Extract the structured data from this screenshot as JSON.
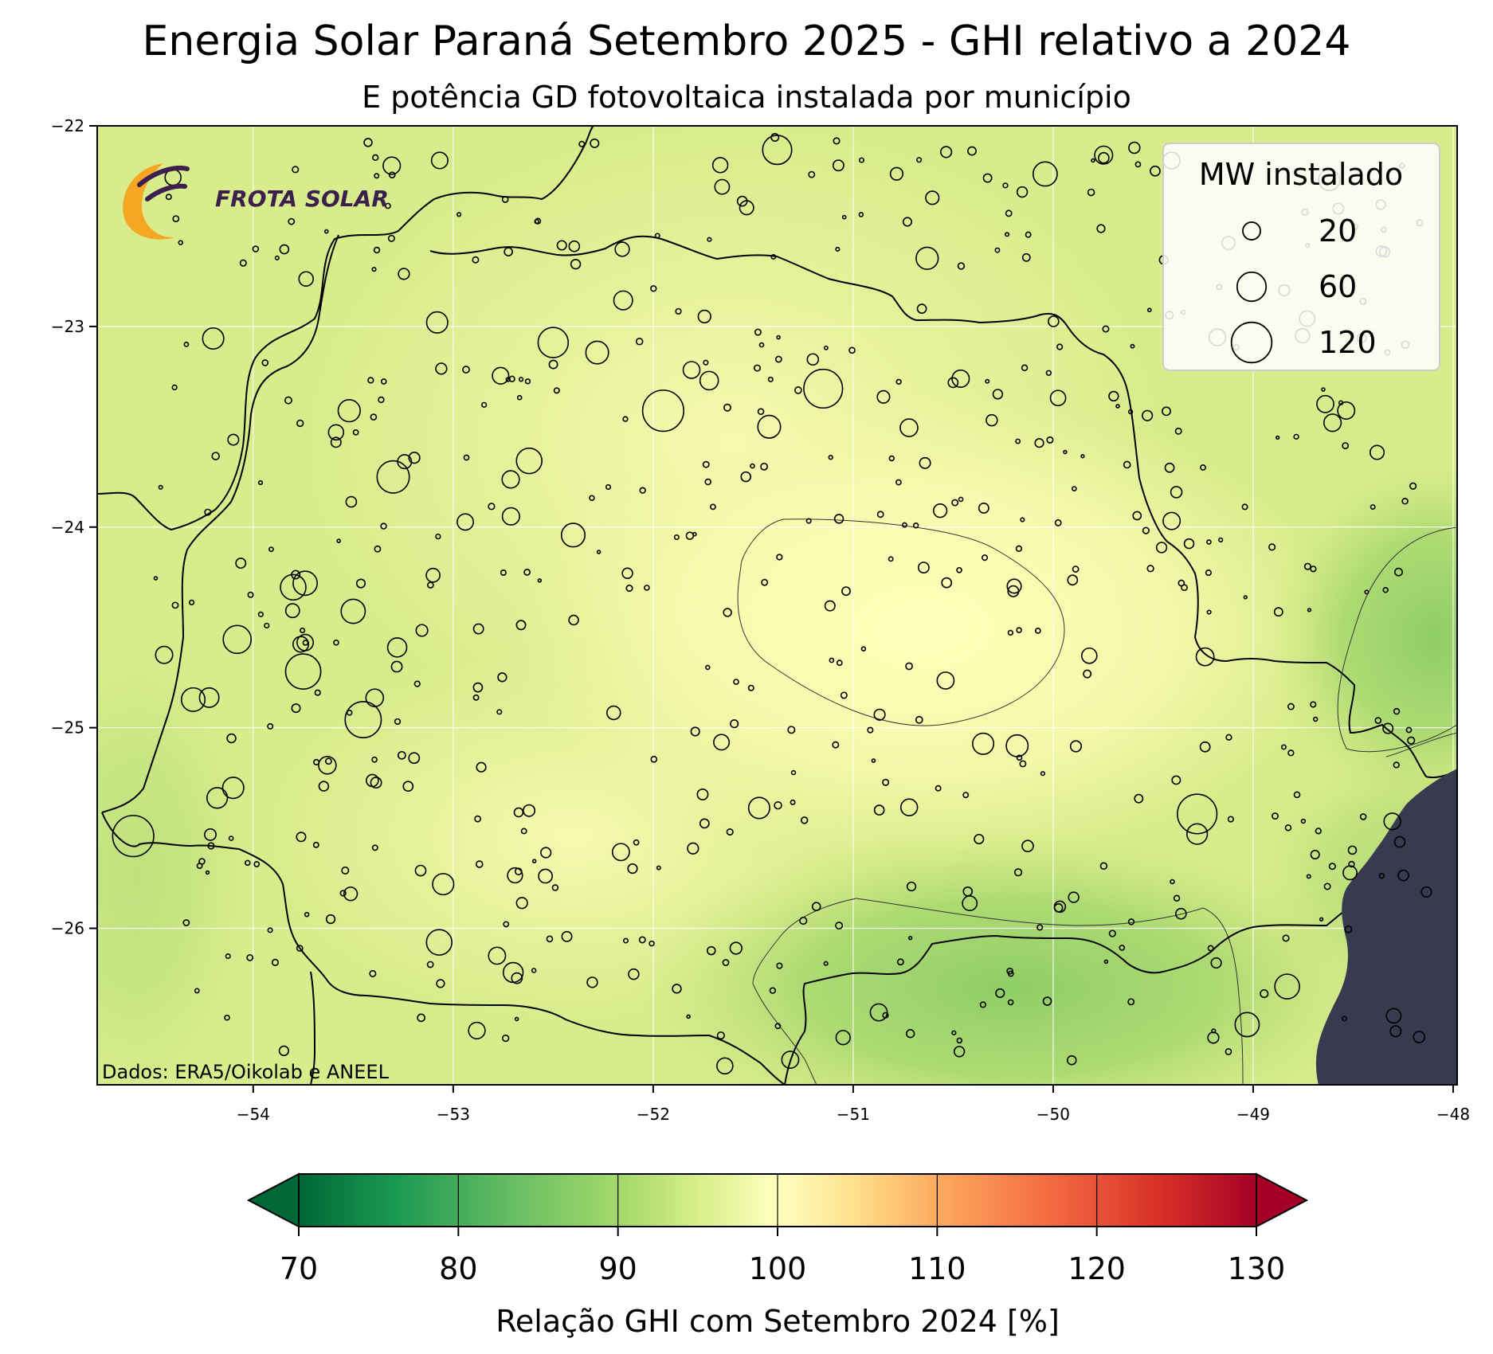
{
  "title": "Energia Solar Paraná Setembro 2025 - GHI relativo a 2024",
  "subtitle": "E potência GD fotovoltaica instalada por município",
  "credit": "Dados: ERA5/Oikolab e ANEEL",
  "logo_text": "FROTA SOLAR",
  "legend": {
    "title": "MW instalado",
    "entries": [
      {
        "label": "20",
        "mw": 20
      },
      {
        "label": "60",
        "mw": 60
      },
      {
        "label": "120",
        "mw": 120
      }
    ]
  },
  "colorbar": {
    "label": "Relação GHI com Setembro 2024 [%]",
    "ticks": [
      "70",
      "80",
      "90",
      "100",
      "110",
      "120",
      "130"
    ],
    "range": [
      70,
      130
    ],
    "extend": "both",
    "colormap": "RdYlGn_r"
  },
  "colors": {
    "ocean": "#383b4f",
    "ghi_background": "#d8ec8c",
    "ghi_high": "#ffffbe",
    "ghi_low": "#93cf68",
    "border_line": "#000000"
  },
  "chart_data": {
    "type": "map",
    "x_ticks": [
      "−54",
      "−53",
      "−52",
      "−51",
      "−50",
      "−49",
      "−48"
    ],
    "y_ticks": [
      "−22",
      "−23",
      "−24",
      "−25",
      "−26"
    ],
    "xlim": [
      -54.78,
      -47.98
    ],
    "ylim": [
      -26.78,
      -22.0
    ],
    "grid": true,
    "legend_position": "top-right",
    "contour_levels": [
      90,
      100
    ],
    "municipal_mw_sample": [
      {
        "lon": -51.95,
        "lat": -23.42,
        "mw": 125
      },
      {
        "lon": -51.15,
        "lat": -23.31,
        "mw": 110
      },
      {
        "lon": -54.6,
        "lat": -25.54,
        "mw": 125
      },
      {
        "lon": -53.45,
        "lat": -24.96,
        "mw": 95
      },
      {
        "lon": -49.28,
        "lat": -25.43,
        "mw": 115
      },
      {
        "lon": -53.75,
        "lat": -24.72,
        "mw": 90
      },
      {
        "lon": -53.3,
        "lat": -23.75,
        "mw": 75
      },
      {
        "lon": -52.5,
        "lat": -23.08,
        "mw": 65
      },
      {
        "lon": -51.38,
        "lat": -22.12,
        "mw": 60
      },
      {
        "lon": -54.08,
        "lat": -24.56,
        "mw": 55
      },
      {
        "lon": -52.62,
        "lat": -23.67,
        "mw": 45
      },
      {
        "lon": -53.8,
        "lat": -24.3,
        "mw": 45
      },
      {
        "lon": -53.5,
        "lat": -24.42,
        "mw": 40
      },
      {
        "lon": -53.07,
        "lat": -26.07,
        "mw": 45
      },
      {
        "lon": -51.42,
        "lat": -23.5,
        "mw": 35
      },
      {
        "lon": -52.28,
        "lat": -23.13,
        "mw": 35
      },
      {
        "lon": -54.3,
        "lat": -24.86,
        "mw": 38
      },
      {
        "lon": -53.52,
        "lat": -23.42,
        "mw": 33
      },
      {
        "lon": -52.4,
        "lat": -24.04,
        "mw": 38
      },
      {
        "lon": -49.03,
        "lat": -26.48,
        "mw": 40
      },
      {
        "lon": -48.83,
        "lat": -26.29,
        "mw": 42
      },
      {
        "lon": -50.18,
        "lat": -25.09,
        "mw": 32
      },
      {
        "lon": -51.47,
        "lat": -25.4,
        "mw": 30
      },
      {
        "lon": -50.04,
        "lat": -22.24,
        "mw": 40
      },
      {
        "lon": -50.63,
        "lat": -22.66,
        "mw": 33
      },
      {
        "lon": -54.2,
        "lat": -23.06,
        "mw": 30
      },
      {
        "lon": -53.08,
        "lat": -22.98,
        "mw": 30
      },
      {
        "lon": -52.15,
        "lat": -22.87,
        "mw": 23
      },
      {
        "lon": -51.72,
        "lat": -23.27,
        "mw": 22
      },
      {
        "lon": -49.28,
        "lat": -25.53,
        "mw": 28
      },
      {
        "lon": -53.05,
        "lat": -25.78,
        "mw": 30
      },
      {
        "lon": -53.74,
        "lat": -24.28,
        "mw": 40
      },
      {
        "lon": -54.22,
        "lat": -24.85,
        "mw": 25
      },
      {
        "lon": -54.18,
        "lat": -25.35,
        "mw": 28
      },
      {
        "lon": -54.1,
        "lat": -25.3,
        "mw": 30
      },
      {
        "lon": -53.28,
        "lat": -24.6,
        "mw": 24
      },
      {
        "lon": -52.7,
        "lat": -26.22,
        "mw": 26
      },
      {
        "lon": -50.35,
        "lat": -25.08,
        "mw": 30
      },
      {
        "lon": -48.62,
        "lat": -22.27,
        "mw": 30
      }
    ]
  }
}
